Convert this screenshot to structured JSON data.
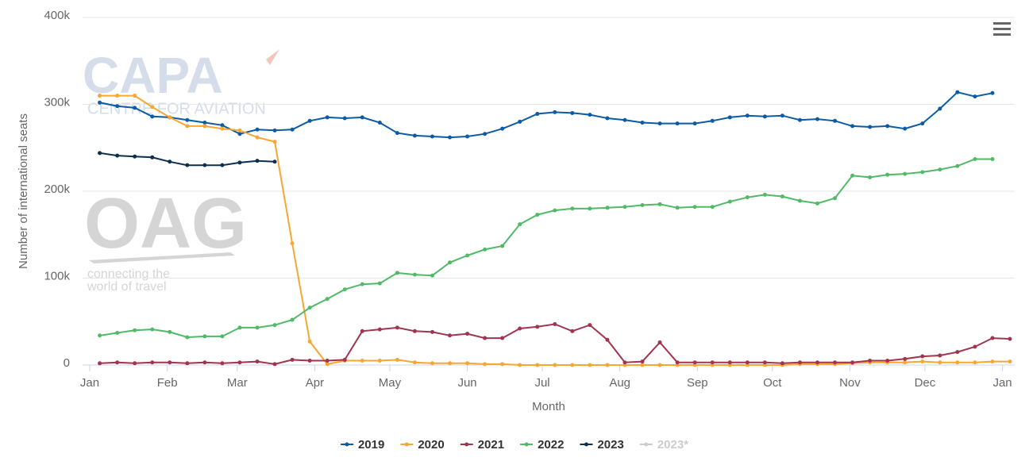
{
  "chart_data": {
    "type": "line",
    "y_label": "Number of international seats",
    "x_label": "Month",
    "xlim": [
      0,
      368
    ],
    "xticks": [
      {
        "value": 0,
        "label": "Jan"
      },
      {
        "value": 31,
        "label": "Feb"
      },
      {
        "value": 59,
        "label": "Mar"
      },
      {
        "value": 90,
        "label": "Apr"
      },
      {
        "value": 120,
        "label": "May"
      },
      {
        "value": 151,
        "label": "Jun"
      },
      {
        "value": 181,
        "label": "Jul"
      },
      {
        "value": 212,
        "label": "Aug"
      },
      {
        "value": 243,
        "label": "Sep"
      },
      {
        "value": 273,
        "label": "Oct"
      },
      {
        "value": 304,
        "label": "Nov"
      },
      {
        "value": 334,
        "label": "Dec"
      },
      {
        "value": 365,
        "label": "Jan"
      }
    ],
    "ylim": [
      0,
      400000
    ],
    "yticks": [
      {
        "value": 0,
        "label": "0"
      },
      {
        "value": 100000,
        "label": "100k"
      },
      {
        "value": 200000,
        "label": "200k"
      },
      {
        "value": 300000,
        "label": "300k"
      },
      {
        "value": 400000,
        "label": "400k"
      }
    ],
    "grid": true,
    "legend": "bottom",
    "x": [
      4,
      11,
      18,
      25,
      32,
      39,
      46,
      53,
      60,
      67,
      74,
      81,
      88,
      95,
      102,
      109,
      116,
      123,
      130,
      137,
      144,
      151,
      158,
      165,
      172,
      179,
      186,
      193,
      200,
      207,
      214,
      221,
      228,
      235,
      242,
      249,
      256,
      263,
      270,
      277,
      284,
      291,
      298,
      305,
      312,
      319,
      326,
      333,
      340,
      347,
      354,
      361,
      368
    ],
    "series": [
      {
        "name": "2019",
        "color": "#0b5ba6",
        "values": [
          302000,
          298000,
          296000,
          286000,
          285000,
          282000,
          279000,
          276000,
          266000,
          271000,
          270000,
          271000,
          281000,
          285000,
          284000,
          285000,
          279000,
          267000,
          264000,
          263000,
          262000,
          263000,
          266000,
          272000,
          280000,
          289000,
          291000,
          290000,
          288000,
          284000,
          282000,
          279000,
          278000,
          278000,
          278000,
          281000,
          285000,
          287000,
          286000,
          287000,
          282000,
          283000,
          281000,
          275000,
          274000,
          275000,
          272000,
          278000,
          295000,
          314000,
          309000,
          313000,
          null
        ]
      },
      {
        "name": "2020",
        "color": "#f7a731",
        "values": [
          310000,
          310000,
          310000,
          297000,
          285000,
          275000,
          275000,
          272000,
          270000,
          262000,
          257000,
          140000,
          27000,
          1000,
          5000,
          5000,
          5000,
          6000,
          3000,
          2000,
          2000,
          2000,
          1000,
          1000,
          0,
          0,
          0,
          0,
          0,
          0,
          0,
          0,
          0,
          0,
          0,
          0,
          0,
          0,
          0,
          0,
          1000,
          1000,
          1000,
          2000,
          3000,
          3000,
          3000,
          4000,
          3000,
          3000,
          3000,
          4000,
          4000
        ]
      },
      {
        "name": "2021",
        "color": "#a1344e",
        "values": [
          2000,
          3000,
          2000,
          3000,
          3000,
          2000,
          3000,
          2000,
          3000,
          4000,
          1000,
          6000,
          5000,
          5000,
          6000,
          39000,
          41000,
          43000,
          39000,
          38000,
          34000,
          36000,
          31000,
          31000,
          42000,
          44000,
          47000,
          39000,
          46000,
          29000,
          3000,
          4000,
          26000,
          3000,
          3000,
          3000,
          3000,
          3000,
          3000,
          2000,
          3000,
          3000,
          3000,
          3000,
          5000,
          5000,
          7000,
          10000,
          11000,
          15000,
          21000,
          31000,
          30000
        ]
      },
      {
        "name": "2022",
        "color": "#50ba67",
        "values": [
          34000,
          37000,
          40000,
          41000,
          38000,
          32000,
          33000,
          33000,
          43000,
          43000,
          46000,
          52000,
          66000,
          76000,
          87000,
          93000,
          94000,
          106000,
          104000,
          103000,
          118000,
          126000,
          133000,
          137000,
          162000,
          173000,
          178000,
          180000,
          180000,
          181000,
          182000,
          184000,
          185000,
          181000,
          182000,
          182000,
          188000,
          193000,
          196000,
          194000,
          189000,
          186000,
          192000,
          218000,
          216000,
          219000,
          220000,
          222000,
          225000,
          229000,
          237000,
          237000,
          null
        ]
      },
      {
        "name": "2023",
        "color": "#0c2f50",
        "values": [
          244000,
          241000,
          240000,
          239000,
          234000,
          230000,
          230000,
          230000,
          233000,
          235000,
          234000,
          null,
          null,
          null,
          null,
          null,
          null,
          null,
          null,
          null,
          null,
          null,
          null,
          null,
          null,
          null,
          null,
          null,
          null,
          null,
          null,
          null,
          null,
          null,
          null,
          null,
          null,
          null,
          null,
          null,
          null,
          null,
          null,
          null,
          null,
          null,
          null,
          null,
          null,
          null,
          null,
          null,
          null
        ]
      },
      {
        "name": "2023*",
        "color": "#cccccc",
        "hidden": true,
        "values": [
          null,
          null,
          null,
          null,
          null,
          null,
          null,
          null,
          null,
          null,
          null,
          null,
          null,
          null,
          null,
          null,
          null,
          null,
          null,
          null,
          null,
          null,
          null,
          null,
          null,
          null,
          null,
          null,
          null,
          null,
          null,
          null,
          null,
          null,
          null,
          null,
          null,
          null,
          null,
          null,
          null,
          null,
          null,
          null,
          null,
          null,
          null,
          null,
          null,
          null,
          null,
          null,
          null
        ]
      }
    ]
  },
  "watermarks": {
    "capa": "CAPA",
    "capa_sub": "CENTRE FOR AVIATION",
    "oag": "OAG",
    "oag_sub1": "connecting the",
    "oag_sub2": "world of travel"
  }
}
